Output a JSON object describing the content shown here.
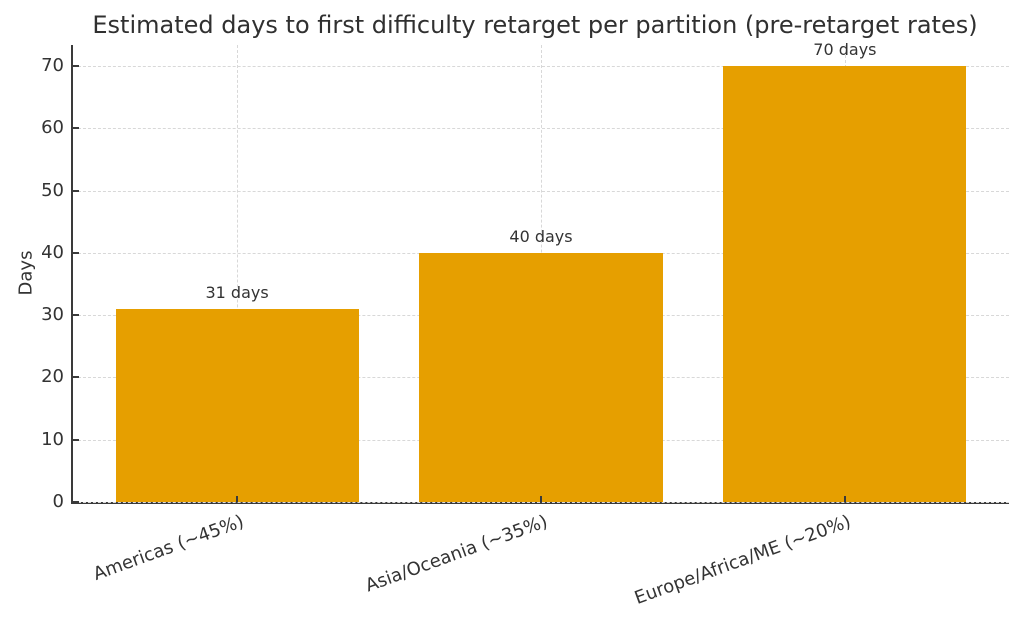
{
  "chart_data": {
    "type": "bar",
    "title": "Estimated days to first difficulty retarget per partition (pre-retarget rates)",
    "categories": [
      "Americas (~45%)",
      "Asia/Oceania (~35%)",
      "Europe/Africa/ME (~20%)"
    ],
    "values": [
      31,
      40,
      70
    ],
    "bar_labels": [
      "31 days",
      "40 days",
      "70 days"
    ],
    "xlabel": "",
    "ylabel": "Days",
    "yticks": [
      0,
      10,
      20,
      30,
      40,
      50,
      60,
      70
    ],
    "ylim": [
      0,
      73.4
    ],
    "legend": "none",
    "grid": "dashed, horizontal at y-ticks and vertical at bar centers",
    "x_tick_rotation_deg": 20,
    "colors": {
      "bar": "#E69F00",
      "grid": "#d8d8d8",
      "spine": "#3a3a3a",
      "text": "#333333",
      "background": "#ffffff"
    }
  }
}
